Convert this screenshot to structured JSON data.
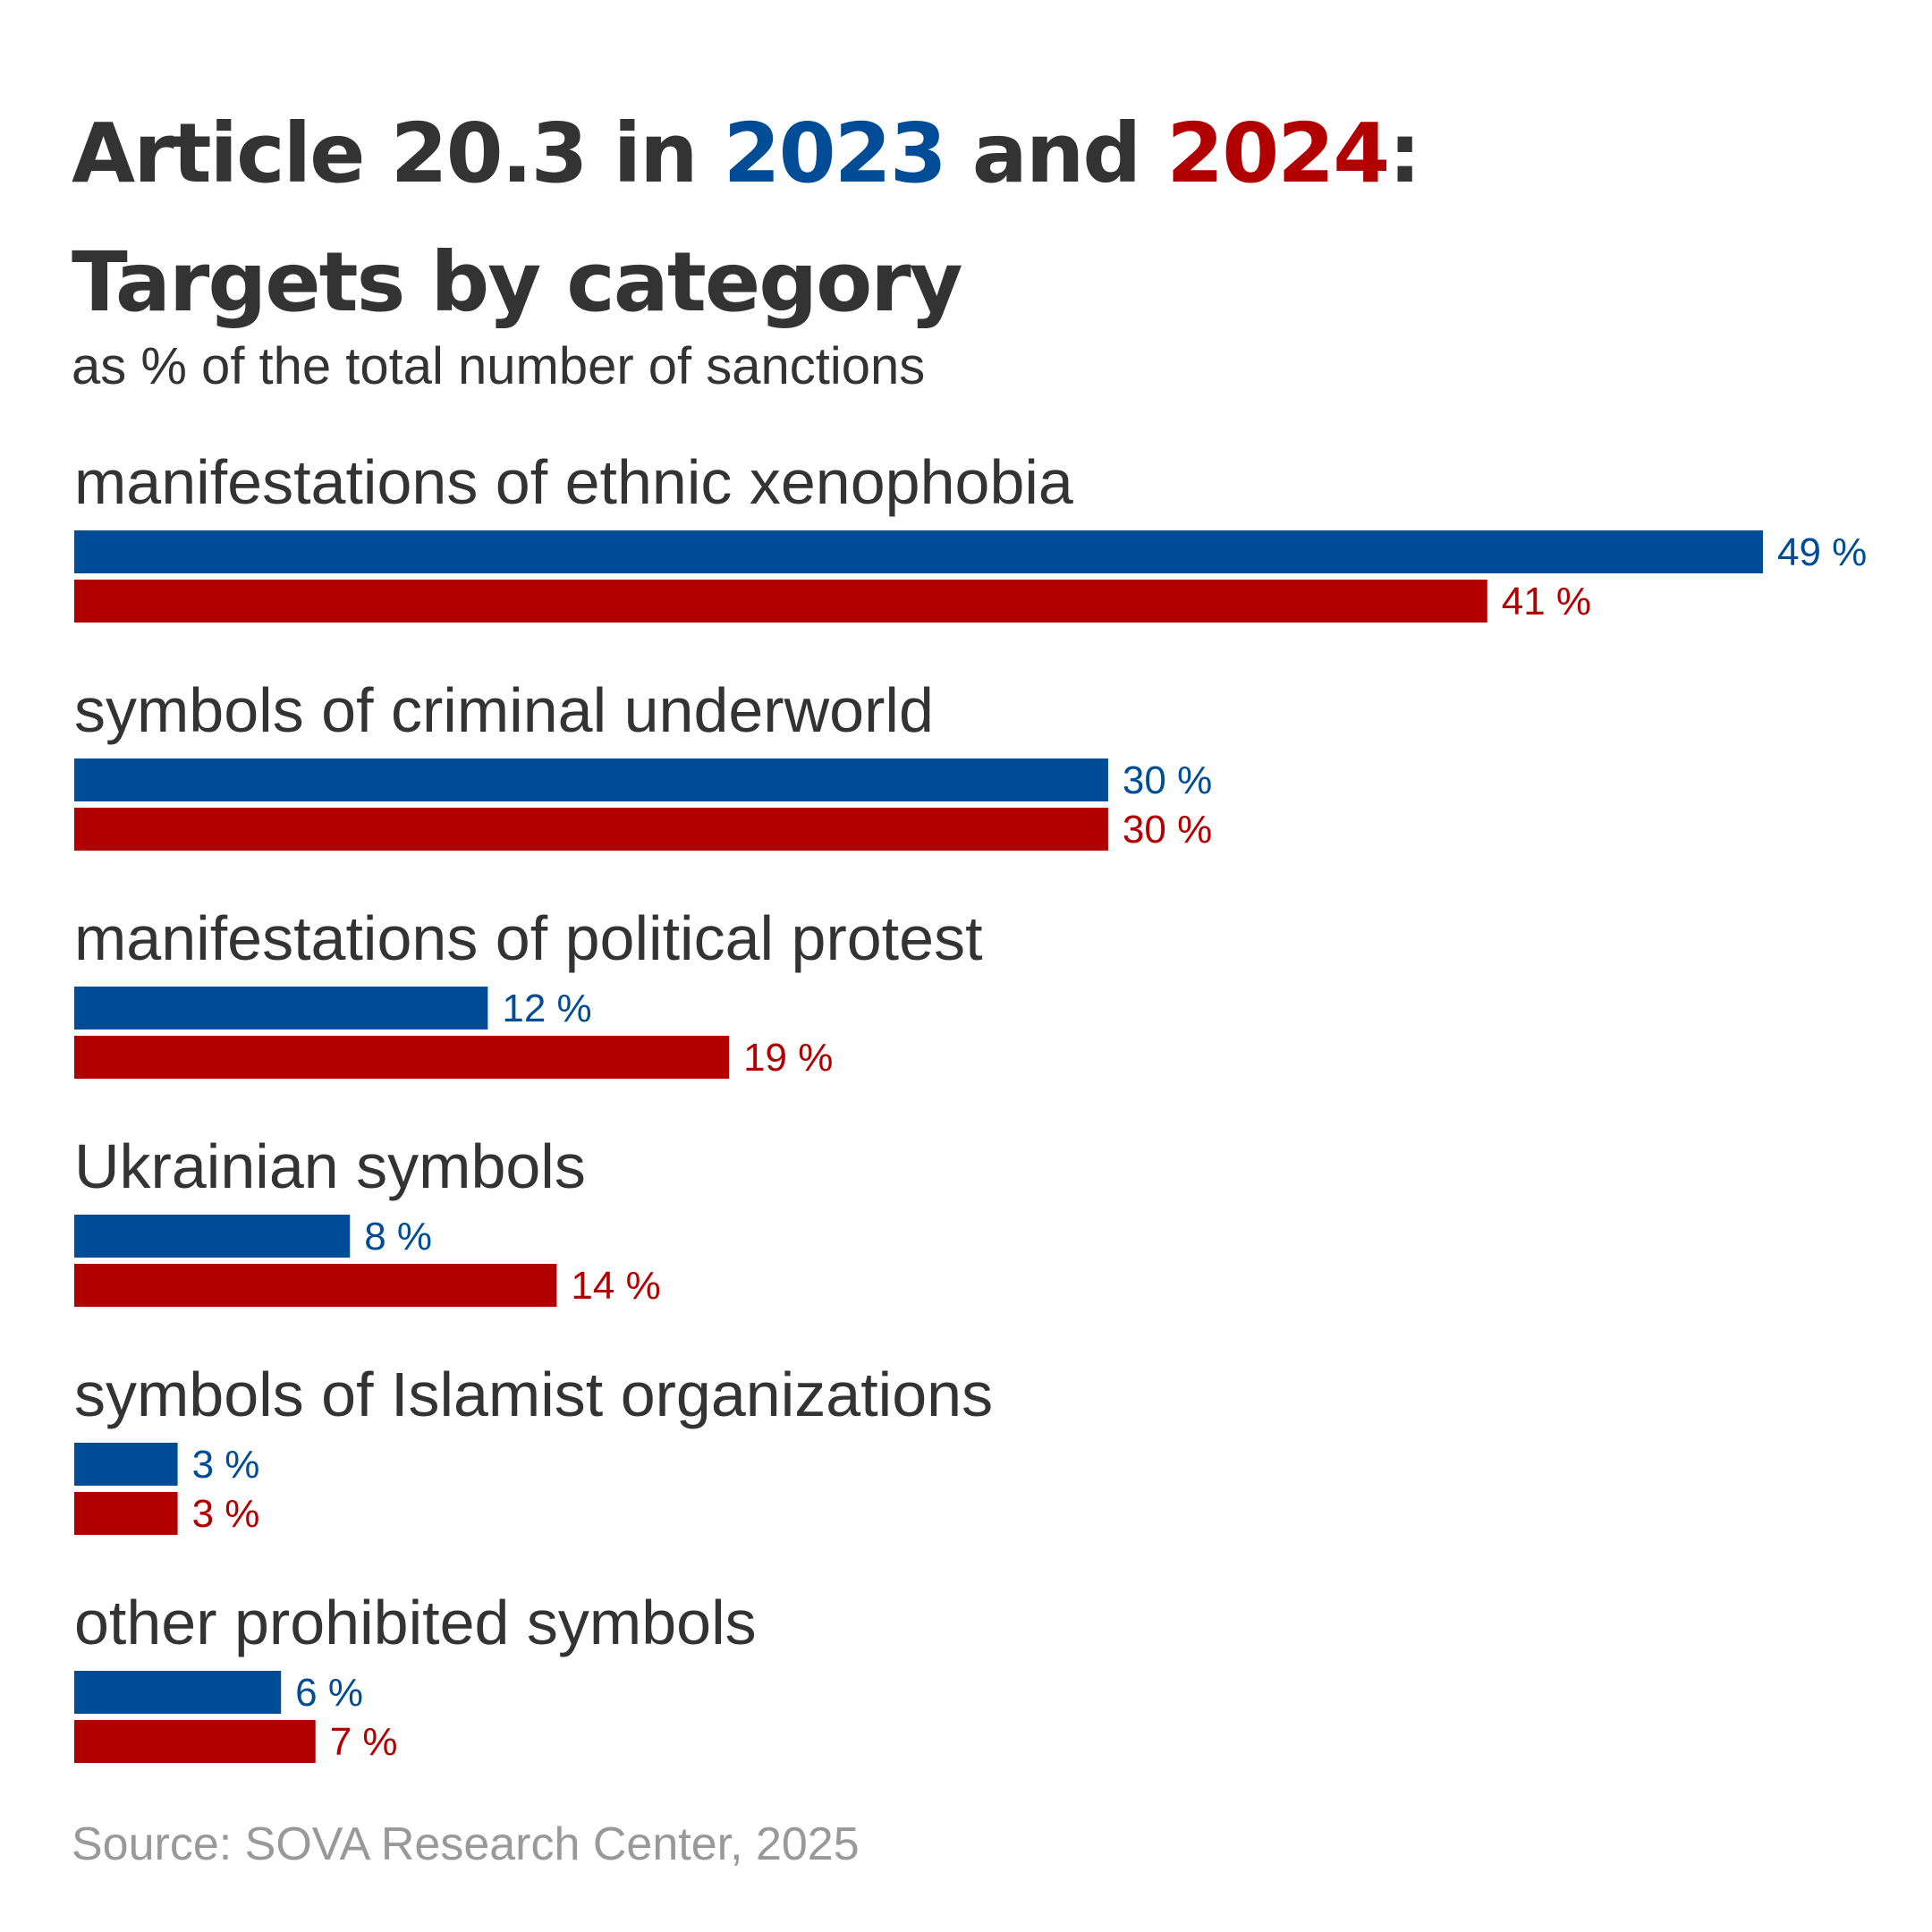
{
  "colors": {
    "series_2023": "#004c97",
    "series_2024": "#b20000",
    "text": "#333333",
    "source": "#999999"
  },
  "header": {
    "title_part1": "Article 20.3 in ",
    "title_year1": "2023",
    "title_part2": " and ",
    "title_year2": "2024",
    "title_part3": ":",
    "title_line2": "Targets by category",
    "subtitle": "as % of the total number of sanctions"
  },
  "source": "Source: SOVA Research Center, 2025",
  "chart_data": {
    "type": "bar",
    "orientation": "horizontal",
    "title": "Article 20.3 in 2023 and 2024: Targets by category",
    "subtitle": "as % of the total number of sanctions",
    "categories": [
      "manifestations of ethnic xenophobia",
      "symbols of criminal underworld",
      "manifestations of political protest",
      "Ukrainian symbols",
      "symbols of Islamist organizations",
      "other prohibited symbols"
    ],
    "series": [
      {
        "name": "2023",
        "color": "#004c97",
        "values": [
          49,
          30,
          12,
          8,
          3,
          6
        ]
      },
      {
        "name": "2024",
        "color": "#b20000",
        "values": [
          41,
          30,
          19,
          14,
          3,
          7
        ]
      }
    ],
    "value_suffix": " %",
    "xlim": [
      0,
      49
    ],
    "grid": false,
    "legend": "none (series identified by colored years in title)"
  }
}
